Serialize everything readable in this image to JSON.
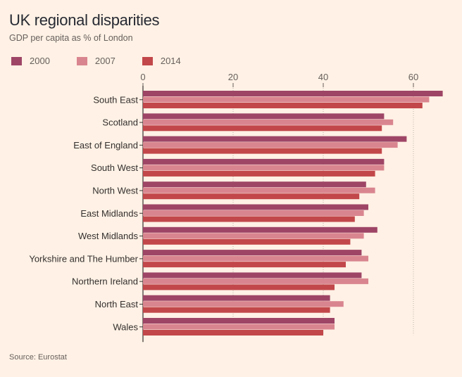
{
  "chart_data": {
    "type": "bar",
    "orientation": "horizontal",
    "title": "UK regional disparities",
    "subtitle": "GDP per capita as % of London",
    "source": "Source: Eurostat",
    "xlim": [
      0,
      66
    ],
    "xticks": [
      0,
      20,
      40,
      60
    ],
    "grid": "vertical dotted",
    "legend_position": "top-left",
    "categories": [
      "South East",
      "Scotland",
      "East of England",
      "South West",
      "North West",
      "East Midlands",
      "West Midlands",
      "Yorkshire and The Humber",
      "Northern Ireland",
      "North East",
      "Wales"
    ],
    "series": [
      {
        "name": "2000",
        "color": "#9e4566",
        "values": [
          66.5,
          53.5,
          58.5,
          53.5,
          49.5,
          50.0,
          52.0,
          48.5,
          48.5,
          41.5,
          42.5
        ]
      },
      {
        "name": "2007",
        "color": "#d9858f",
        "values": [
          63.5,
          55.5,
          56.5,
          53.5,
          51.5,
          49.0,
          49.0,
          50.0,
          50.0,
          44.5,
          42.5
        ]
      },
      {
        "name": "2014",
        "color": "#c2474a",
        "values": [
          62.0,
          53.0,
          53.0,
          51.5,
          48.0,
          47.0,
          46.0,
          45.0,
          42.5,
          41.5,
          40.0
        ]
      }
    ]
  }
}
